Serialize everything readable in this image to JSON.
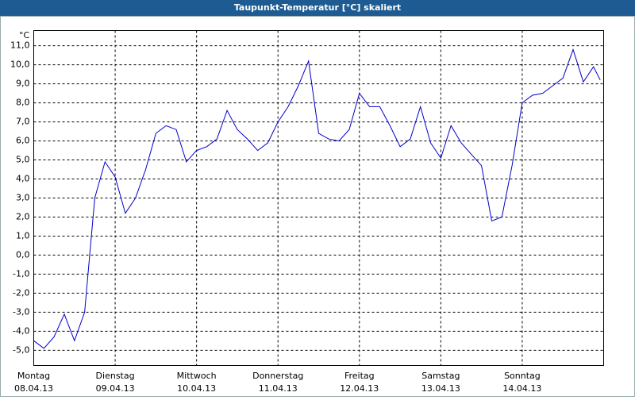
{
  "chart_data": {
    "type": "line",
    "title": "Taupunkt-Temperatur [°C] skaliert",
    "y_unit": "°C",
    "x": [
      0,
      3,
      6,
      9,
      12,
      15,
      18,
      21,
      24,
      27,
      30,
      33,
      36,
      39,
      42,
      45,
      48,
      51,
      54,
      57,
      60,
      63,
      66,
      69,
      72,
      75,
      78,
      81,
      84,
      87,
      90,
      93,
      96,
      99,
      102,
      105,
      108,
      111,
      114,
      117,
      120,
      123,
      126,
      129,
      132,
      135,
      138,
      141,
      144,
      147,
      150,
      153,
      156,
      159,
      162,
      165,
      167
    ],
    "series": [
      {
        "color": "#0000cc",
        "values": [
          -4.5,
          -4.9,
          -4.3,
          -3.1,
          -4.5,
          -3.0,
          3.0,
          4.9,
          4.1,
          2.2,
          3.0,
          4.5,
          6.4,
          6.8,
          6.6,
          4.9,
          5.5,
          5.7,
          6.1,
          7.6,
          6.6,
          6.1,
          5.5,
          5.9,
          7.0,
          7.8,
          8.9,
          10.2,
          6.4,
          6.1,
          6.0,
          6.6,
          8.5,
          7.8,
          7.8,
          6.8,
          5.7,
          6.1,
          7.8,
          5.9,
          5.1,
          6.8,
          5.9,
          5.3,
          4.7,
          1.8,
          2.0,
          4.7,
          8.0,
          8.4,
          8.5,
          8.9,
          9.3,
          10.8,
          9.1,
          9.9,
          9.2
        ]
      }
    ],
    "xlim": [
      0,
      168
    ],
    "xticks": [
      {
        "value": 0,
        "label": "Montag",
        "date": "08.04.13"
      },
      {
        "value": 24,
        "label": "Dienstag",
        "date": "09.04.13"
      },
      {
        "value": 48,
        "label": "Mittwoch",
        "date": "10.04.13"
      },
      {
        "value": 72,
        "label": "Donnerstag",
        "date": "11.04.13"
      },
      {
        "value": 96,
        "label": "Freitag",
        "date": "12.04.13"
      },
      {
        "value": 120,
        "label": "Samstag",
        "date": "13.04.13"
      },
      {
        "value": 144,
        "label": "Sonntag",
        "date": "14.04.13"
      }
    ],
    "ylim": [
      -5.8,
      11.8
    ],
    "yticks": [
      {
        "value": -5,
        "label": "-5,0"
      },
      {
        "value": -4,
        "label": "-4,0"
      },
      {
        "value": -3,
        "label": "-3,0"
      },
      {
        "value": -2,
        "label": "-2,0"
      },
      {
        "value": -1,
        "label": "-1,0"
      },
      {
        "value": 0,
        "label": "0,0"
      },
      {
        "value": 1,
        "label": "1,0"
      },
      {
        "value": 2,
        "label": "2,0"
      },
      {
        "value": 3,
        "label": "3,0"
      },
      {
        "value": 4,
        "label": "4,0"
      },
      {
        "value": 5,
        "label": "5,0"
      },
      {
        "value": 6,
        "label": "6,0"
      },
      {
        "value": 7,
        "label": "7,0"
      },
      {
        "value": 8,
        "label": "8,0"
      },
      {
        "value": 9,
        "label": "9,0"
      },
      {
        "value": 10,
        "label": "10,0"
      },
      {
        "value": 11,
        "label": "11,0"
      }
    ],
    "grid": true
  }
}
